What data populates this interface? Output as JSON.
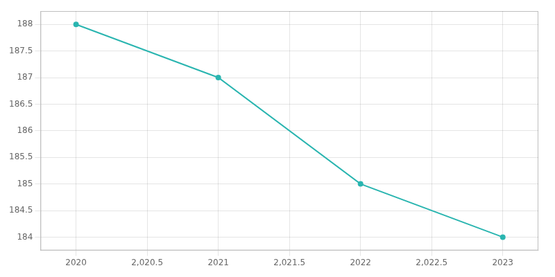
{
  "chart_data": {
    "type": "line",
    "x": [
      2020,
      2021,
      2022,
      2023
    ],
    "values": [
      188,
      187,
      185,
      184
    ],
    "color": "#2ab5b0",
    "marker": "circle",
    "xlim": [
      2019.75,
      2023.25
    ],
    "xticks": [
      2020,
      {
        "value": 2020.5,
        "label": "2,020.5"
      },
      2021,
      {
        "value": 2021.5,
        "label": "2,021.5"
      },
      2022,
      {
        "value": 2022.5,
        "label": "2,022.5"
      },
      2023
    ],
    "ylim": [
      183.75,
      188.25
    ],
    "yticks": [
      184,
      184.5,
      185,
      185.5,
      186,
      186.5,
      187,
      187.5,
      188
    ],
    "grid": true
  }
}
